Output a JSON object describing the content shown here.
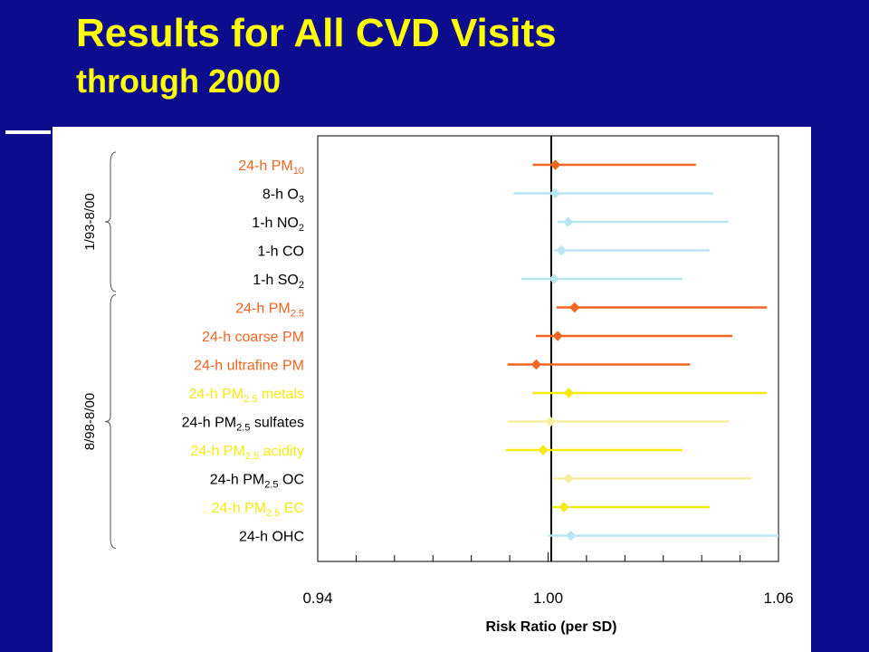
{
  "slide": {
    "title": "Results for All CVD Visits",
    "subtitle": "through 2000"
  },
  "chart_data": {
    "type": "forest",
    "xlabel": "Risk Ratio (per SD)",
    "xlim": [
      0.94,
      1.06
    ],
    "x_ticks": [
      "0.94",
      "1.00",
      "1.06"
    ],
    "reference_line": 1.0,
    "grid": false,
    "groups": [
      {
        "label": "1/93-8/00",
        "rows": [
          0,
          4
        ]
      },
      {
        "label": "8/98-8/00",
        "rows": [
          5,
          13
        ]
      }
    ],
    "rows": [
      {
        "pre": "24-h PM",
        "sub": "10",
        "post": "",
        "estimate": 1.0019,
        "lower": 0.996,
        "upper": 1.0385,
        "color": "#f26522"
      },
      {
        "pre": "8-h O",
        "sub": "3",
        "post": "",
        "estimate": 1.0018,
        "lower": 0.991,
        "upper": 1.043,
        "color": "#b7e6f2"
      },
      {
        "pre": "1-h NO",
        "sub": "2",
        "post": "",
        "estimate": 1.0052,
        "lower": 1.0025,
        "upper": 1.047,
        "color": "#b7e6f2"
      },
      {
        "pre": "1-h CO",
        "sub": "",
        "post": "",
        "estimate": 1.0035,
        "lower": 1.0016,
        "upper": 1.042,
        "color": "#b7e6f2"
      },
      {
        "pre": "1-h SO",
        "sub": "2",
        "post": "",
        "estimate": 1.0016,
        "lower": 0.993,
        "upper": 1.035,
        "color": "#b7e6f2"
      },
      {
        "pre": "24-h PM",
        "sub": "2.5",
        "post": "",
        "estimate": 1.0069,
        "lower": 1.0022,
        "upper": 1.057,
        "color": "#f26522"
      },
      {
        "pre": "24-h coarse PM",
        "sub": "",
        "post": "",
        "estimate": 1.0025,
        "lower": 0.9968,
        "upper": 1.048,
        "color": "#f26522"
      },
      {
        "pre": "24-h ultrafine PM",
        "sub": "",
        "post": "",
        "estimate": 0.9969,
        "lower": 0.9894,
        "upper": 1.037,
        "color": "#f26522"
      },
      {
        "pre": "24-h PM",
        "sub": "2.5",
        "post": " metals",
        "estimate": 1.0054,
        "lower": 0.996,
        "upper": 1.057,
        "color": "#f5ea14"
      },
      {
        "pre": "24-h PM",
        "sub": "2.5",
        "post": " sulfates",
        "estimate": 1.0006,
        "lower": 0.9895,
        "upper": 1.047,
        "color": "#f5f0a0"
      },
      {
        "pre": "24-h PM",
        "sub": "2.5",
        "post": " acidity",
        "estimate": 0.9987,
        "lower": 0.989,
        "upper": 1.035,
        "color": "#f5ea14"
      },
      {
        "pre": "24-h PM",
        "sub": "2.5",
        "post": " OC",
        "estimate": 1.0053,
        "lower": 1.0012,
        "upper": 1.053,
        "color": "#f5f0a0"
      },
      {
        "pre": "24-h PM",
        "sub": "2.5",
        "post": " EC",
        "estimate": 1.0041,
        "lower": 1.001,
        "upper": 1.042,
        "color": "#f5ea14"
      },
      {
        "pre": "24-h OHC",
        "sub": "",
        "post": "",
        "estimate": 1.0059,
        "lower": 1.0,
        "upper": 1.06,
        "color": "#b7e6f2"
      }
    ],
    "label_colors": {
      "orange": "#f26522",
      "yellow": "#f5ea14",
      "dark": "#000000"
    },
    "row_label_colors": [
      "orange",
      "dark",
      "dark",
      "dark",
      "dark",
      "orange",
      "orange",
      "orange",
      "yellow",
      "dark",
      "yellow",
      "dark",
      "yellow",
      "dark"
    ]
  }
}
